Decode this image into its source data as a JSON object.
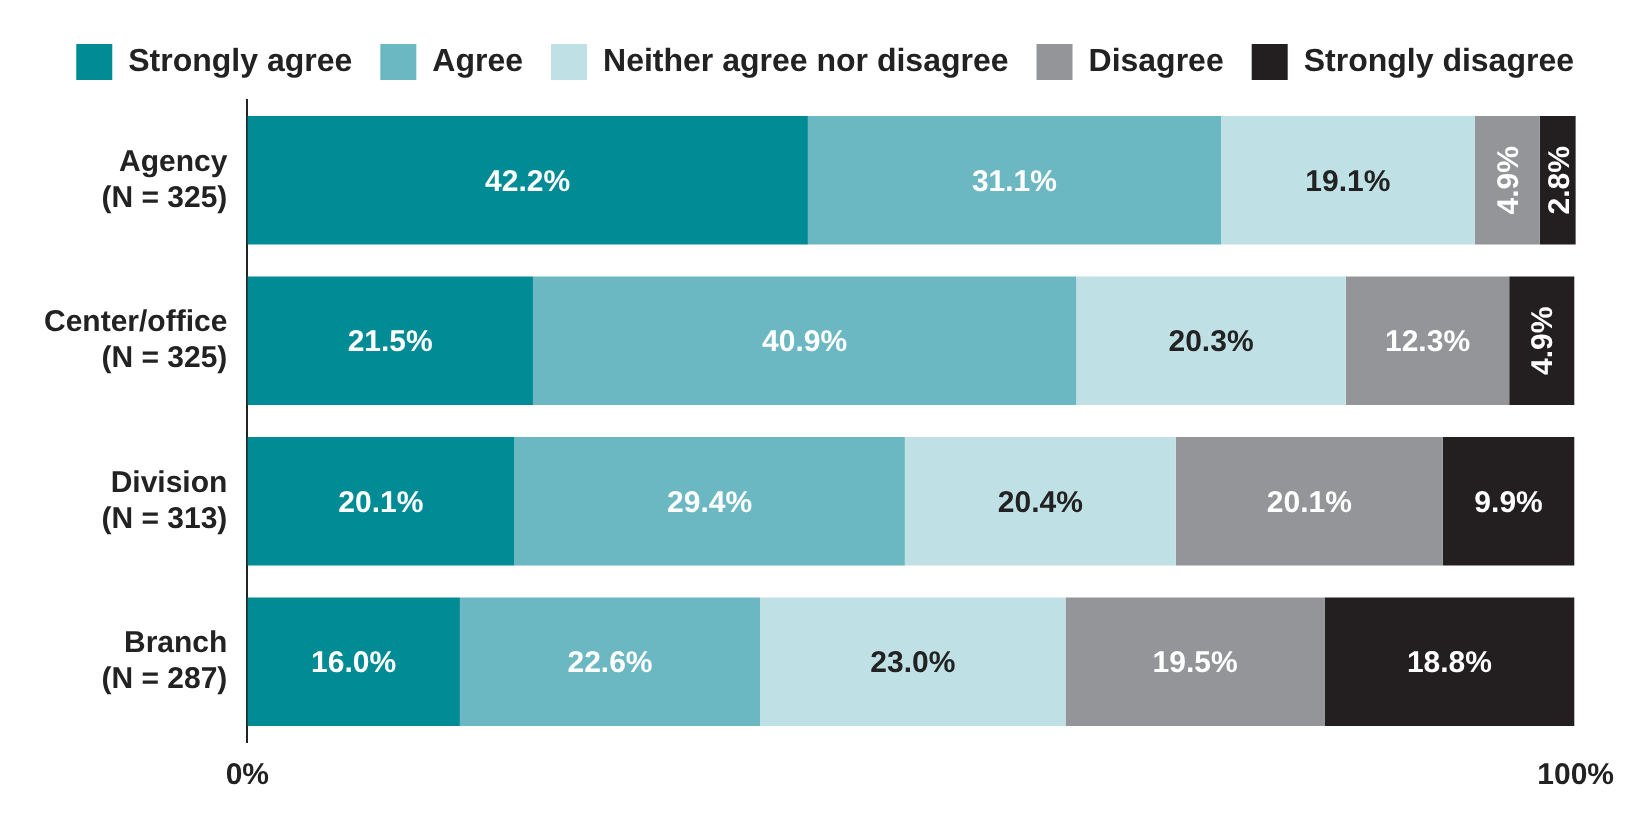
{
  "chart_data": {
    "type": "bar",
    "orientation": "horizontal",
    "stacked": true,
    "legend": "top",
    "grid": false,
    "categories": [
      "Agency\n(N = 325)",
      "Center/office\n(N = 325)",
      "Division\n(N = 313)",
      "Branch\n(N = 287)"
    ],
    "xlim": [
      0,
      100
    ],
    "xticks": [
      {
        "value": 0,
        "label": "0%"
      },
      {
        "value": 100,
        "label": "100%"
      }
    ],
    "series": [
      {
        "name": "Strongly agree",
        "color": "#008b95",
        "values": [
          42.2,
          21.5,
          20.1,
          16.0
        ],
        "value_labels": [
          "42.2%",
          "21.5%",
          "20.1%",
          "16.0%"
        ]
      },
      {
        "name": "Agree",
        "color": "#6bb8c2",
        "values": [
          31.1,
          40.9,
          29.4,
          22.6
        ],
        "value_labels": [
          "31.1%",
          "40.9%",
          "29.4%",
          "22.6%"
        ]
      },
      {
        "name": "Neither agree nor disagree",
        "color": "#bfe1e6",
        "values": [
          19.1,
          20.3,
          20.4,
          23.0
        ],
        "value_labels": [
          "19.1%",
          "20.3%",
          "20.4%",
          "23.0%"
        ]
      },
      {
        "name": "Disagree",
        "color": "#939598",
        "values": [
          4.9,
          12.3,
          20.1,
          19.5
        ],
        "value_labels": [
          "4.9%",
          "12.3%",
          "20.1%",
          "19.5%"
        ]
      },
      {
        "name": "Strongly disagree",
        "color": "#231f20",
        "values": [
          2.8,
          4.9,
          9.9,
          18.8
        ],
        "value_labels": [
          "2.8%",
          "4.9%",
          "9.9%",
          "18.8%"
        ]
      }
    ]
  }
}
